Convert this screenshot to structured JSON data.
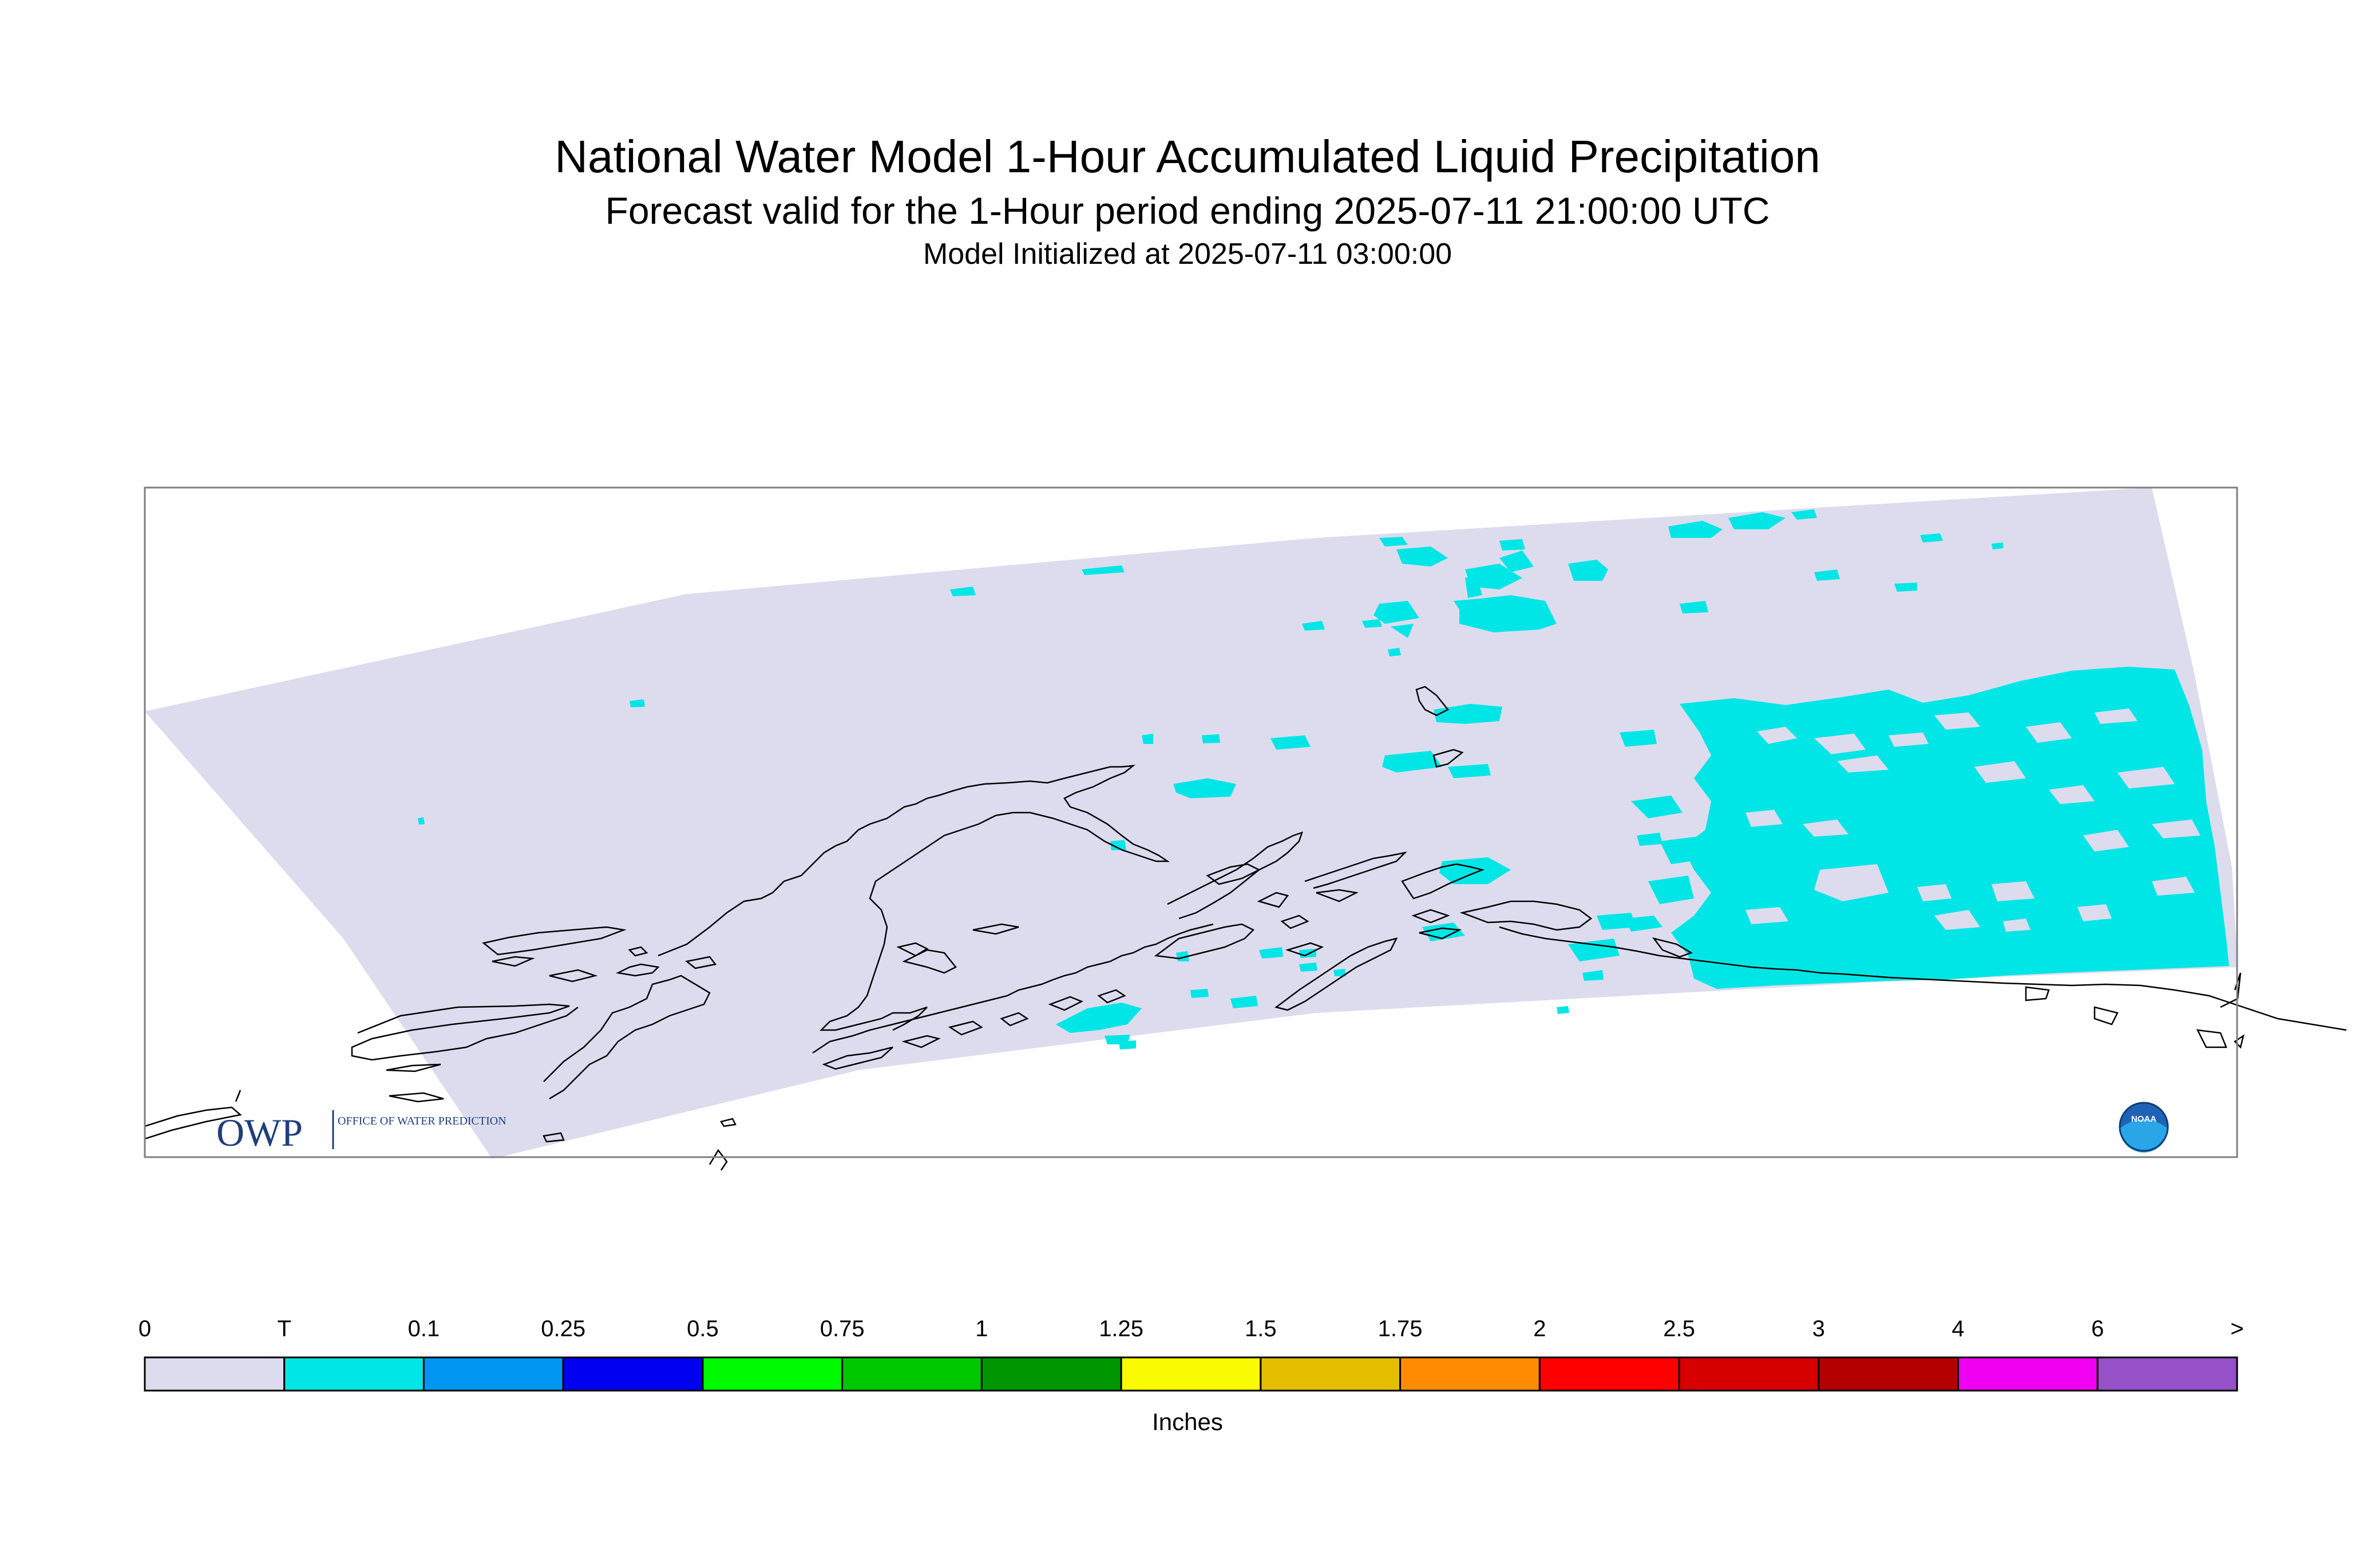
{
  "title": {
    "line1": "National Water Model 1-Hour Accumulated Liquid Precipitation",
    "line2": "Forecast valid for the 1-Hour period ending 2025-07-11 21:00:00 UTC",
    "line3": "Model Initialized at 2025-07-11 03:00:00"
  },
  "logos": {
    "owp": {
      "mark": "OWP",
      "text": "OFFICE OF WATER PREDICTION"
    },
    "noaa": {
      "text": "NOAA"
    }
  },
  "colorbar": {
    "labels": [
      "0",
      "T",
      "0.1",
      "0.25",
      "0.5",
      "0.75",
      "1",
      "1.25",
      "1.5",
      "1.75",
      "2",
      "2.5",
      "3",
      "4",
      "6",
      ">"
    ],
    "colors": [
      "#dcdcee",
      "#00e6e6",
      "#0096f0",
      "#0000f0",
      "#00fa00",
      "#00c800",
      "#009600",
      "#fafa00",
      "#e6be00",
      "#ff8c00",
      "#ff0000",
      "#d60000",
      "#b40000",
      "#f000f0",
      "#9650c8"
    ],
    "units": "Inches"
  },
  "map": {
    "background_color": "#dcdcee",
    "precip_color": "#00e6e6",
    "coast_color": "#000000",
    "frame_color": "#7f7f7f"
  }
}
